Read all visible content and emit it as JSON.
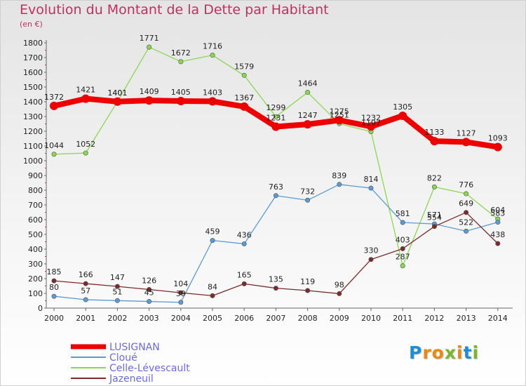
{
  "title": "Evolution du Montant de la Dette par Habitant",
  "subtitle": "(en €)",
  "logo": {
    "letters": [
      "P",
      "r",
      "o",
      "x",
      "i",
      "t",
      "i"
    ],
    "colors": [
      "#1a8fd8",
      "#e88a10",
      "#e88a10",
      "#7ab828",
      "#e88a10",
      "#1a8fd8",
      "#7ab828"
    ]
  },
  "chart_data": {
    "type": "line",
    "x": [
      "2000",
      "2001",
      "2002",
      "2003",
      "2004",
      "2005",
      "2006",
      "2007",
      "2008",
      "2009",
      "2010",
      "2011",
      "2012",
      "2013",
      "2014"
    ],
    "ylim": [
      0,
      1800
    ],
    "yticks": [
      0,
      100,
      200,
      300,
      400,
      500,
      600,
      700,
      800,
      900,
      1000,
      1100,
      1200,
      1300,
      1400,
      1500,
      1600,
      1700,
      1800
    ],
    "grid": false,
    "legend_placement": "bottom-left",
    "series": [
      {
        "name": "LUSIGNAN",
        "color": "#ee0000",
        "values": [
          1372,
          1421,
          1401,
          1409,
          1405,
          1403,
          1367,
          1231,
          1247,
          1275,
          1232,
          1305,
          1133,
          1127,
          1093
        ],
        "labels": [
          "1372",
          "1421",
          "1401",
          "1409",
          "1405",
          "1403",
          "1367",
          "1231",
          "1247",
          "1275",
          "1232",
          "1305",
          "1133",
          "1127",
          "1093"
        ]
      },
      {
        "name": "Cloué",
        "color": "#5b9bd5",
        "values": [
          80,
          57,
          51,
          45,
          39,
          459,
          436,
          763,
          732,
          839,
          814,
          581,
          571,
          522,
          583
        ],
        "labels": [
          "80",
          "57",
          "51",
          "45",
          "39",
          "459",
          "436",
          "763",
          "732",
          "839",
          "814",
          "581",
          "571",
          "522",
          "583"
        ]
      },
      {
        "name": "Celle-Lévescault",
        "color": "#88d850",
        "values": [
          1044,
          1052,
          1401,
          1771,
          1672,
          1716,
          1579,
          1299,
          1464,
          1251,
          1197,
          287,
          822,
          776,
          604
        ],
        "labels": [
          "1044",
          "1052",
          "1401",
          "1771",
          "1672",
          "1716",
          "1579",
          "1299",
          "1464",
          "1251",
          "1197",
          "287",
          "822",
          "776",
          "604"
        ]
      },
      {
        "name": "Jazeneuil",
        "color": "#7b2b2b",
        "values": [
          185,
          166,
          147,
          126,
          104,
          84,
          165,
          135,
          119,
          98,
          330,
          403,
          554,
          649,
          438
        ],
        "labels": [
          "185",
          "166",
          "147",
          "126",
          "104",
          "84",
          "165",
          "135",
          "119",
          "98",
          "330",
          "403",
          "554",
          "649",
          "438"
        ]
      }
    ]
  }
}
